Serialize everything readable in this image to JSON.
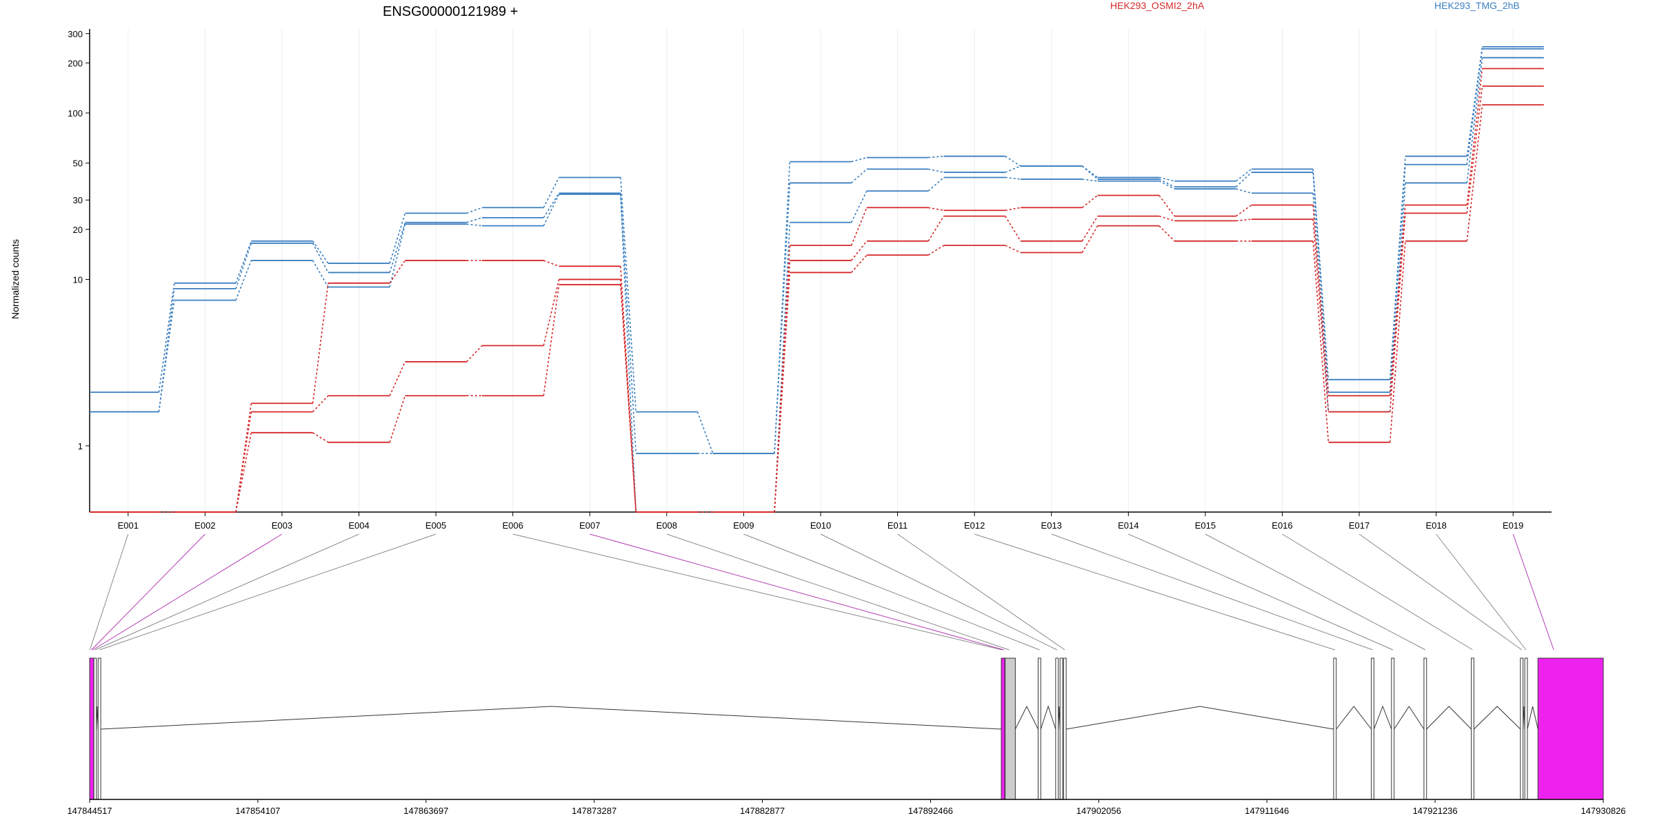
{
  "colors": {
    "series_a": "#d62728",
    "series_b": "#3a7fc0",
    "highlight_exon": "#ee22ee",
    "highlight_exon_dark": "#9a1a9a",
    "grey_exon": "#cccccc",
    "connector": "#888888",
    "connector_highlight": "#b23bb2"
  },
  "chart_data": {
    "type": "line",
    "title": "ENSG00000121989 +",
    "ylabel": "Normalized counts",
    "yscale": "log",
    "ylim": [
      0.4,
      320
    ],
    "yticks": [
      1,
      10,
      20,
      30,
      50,
      100,
      200,
      300
    ],
    "categories": [
      "E001",
      "E002",
      "E003",
      "E004",
      "E005",
      "E006",
      "E007",
      "E008",
      "E009",
      "E010",
      "E011",
      "E012",
      "E013",
      "E014",
      "E015",
      "E016",
      "E017",
      "E018",
      "E019"
    ],
    "legend": [
      {
        "label": "HEK293_OSMI2_2hA",
        "group": "a"
      },
      {
        "label": "HEK293_TMG_2hB",
        "group": "b"
      }
    ],
    "series": [
      {
        "group": "b",
        "values": [
          2.1,
          9.5,
          17,
          12.5,
          25,
          27,
          41,
          1.6,
          0.9,
          51,
          54,
          55,
          48,
          41,
          39,
          46,
          2.5,
          55,
          250
        ]
      },
      {
        "group": "b",
        "values": [
          1.6,
          8.8,
          16.5,
          11,
          22,
          23.5,
          33,
          0.9,
          0.9,
          38,
          46,
          44,
          48,
          40,
          36,
          44,
          2.1,
          49,
          243
        ]
      },
      {
        "group": "b",
        "values": [
          1.6,
          7.5,
          13,
          9,
          21.5,
          21,
          32.5,
          0.4,
          0.4,
          22,
          34,
          41,
          40,
          39,
          35,
          33,
          1.6,
          38,
          215
        ]
      },
      {
        "group": "a",
        "values": [
          0.4,
          0.4,
          1.8,
          9.5,
          13,
          13,
          12,
          0.4,
          0.4,
          16,
          27,
          26,
          27,
          32,
          24,
          28,
          2.0,
          28,
          185
        ]
      },
      {
        "group": "a",
        "values": [
          0.4,
          0.4,
          1.6,
          2.0,
          3.2,
          4.0,
          10,
          0.4,
          0.4,
          13,
          17,
          24,
          17,
          24,
          22.5,
          23,
          1.6,
          25,
          145
        ]
      },
      {
        "group": "a",
        "values": [
          0.4,
          0.4,
          1.2,
          1.05,
          2.0,
          2.0,
          9.3,
          0.4,
          0.4,
          11,
          14,
          16,
          14.5,
          21,
          17,
          17,
          1.05,
          17,
          112
        ]
      }
    ],
    "gene_model": {
      "coord_range": [
        147844517,
        147930826
      ],
      "coord_ticks": [
        "147844517",
        "147854107",
        "147863697",
        "147873287",
        "147882877",
        "147892466",
        "147902056",
        "147911646",
        "147921236",
        "147930826"
      ],
      "exons": [
        {
          "start": 147844517,
          "end": 147844750,
          "fill": "highlight"
        },
        {
          "start": 147844760,
          "end": 147844900,
          "fill": "none"
        },
        {
          "start": 147845000,
          "end": 147845150,
          "fill": "none"
        },
        {
          "start": 147896500,
          "end": 147896700,
          "fill": "highlight"
        },
        {
          "start": 147896720,
          "end": 147897300,
          "fill": "grey"
        },
        {
          "start": 147898600,
          "end": 147898750,
          "fill": "none"
        },
        {
          "start": 147899600,
          "end": 147899750,
          "fill": "none"
        },
        {
          "start": 147899850,
          "end": 147900000,
          "fill": "none"
        },
        {
          "start": 147900050,
          "end": 147900200,
          "fill": "none"
        },
        {
          "start": 147915450,
          "end": 147915600,
          "fill": "none"
        },
        {
          "start": 147917600,
          "end": 147917750,
          "fill": "none"
        },
        {
          "start": 147918750,
          "end": 147918900,
          "fill": "none"
        },
        {
          "start": 147920600,
          "end": 147920750,
          "fill": "none"
        },
        {
          "start": 147923300,
          "end": 147923450,
          "fill": "none"
        },
        {
          "start": 147926100,
          "end": 147926250,
          "fill": "none"
        },
        {
          "start": 147926350,
          "end": 147926500,
          "fill": "none"
        },
        {
          "start": 147927100,
          "end": 147930826,
          "fill": "highlight"
        }
      ],
      "exon_bin_links": [
        {
          "bin": "E001",
          "pos": 147844530,
          "highlight": false
        },
        {
          "bin": "E002",
          "pos": 147844620,
          "highlight": true
        },
        {
          "bin": "E003",
          "pos": 147844700,
          "highlight": true
        },
        {
          "bin": "E004",
          "pos": 147844830,
          "highlight": false
        },
        {
          "bin": "E005",
          "pos": 147845080,
          "highlight": false
        },
        {
          "bin": "E006",
          "pos": 147896550,
          "highlight": false
        },
        {
          "bin": "E007",
          "pos": 147896650,
          "highlight": true
        },
        {
          "bin": "E008",
          "pos": 147896950,
          "highlight": false
        },
        {
          "bin": "E009",
          "pos": 147898680,
          "highlight": false
        },
        {
          "bin": "E010",
          "pos": 147899680,
          "highlight": false
        },
        {
          "bin": "E011",
          "pos": 147900120,
          "highlight": false
        },
        {
          "bin": "E012",
          "pos": 147915520,
          "highlight": false
        },
        {
          "bin": "E013",
          "pos": 147917680,
          "highlight": false
        },
        {
          "bin": "E014",
          "pos": 147918830,
          "highlight": false
        },
        {
          "bin": "E015",
          "pos": 147920680,
          "highlight": false
        },
        {
          "bin": "E016",
          "pos": 147923380,
          "highlight": false
        },
        {
          "bin": "E017",
          "pos": 147926180,
          "highlight": false
        },
        {
          "bin": "E018",
          "pos": 147926420,
          "highlight": false
        },
        {
          "bin": "E019",
          "pos": 147928000,
          "highlight": true
        }
      ]
    }
  }
}
